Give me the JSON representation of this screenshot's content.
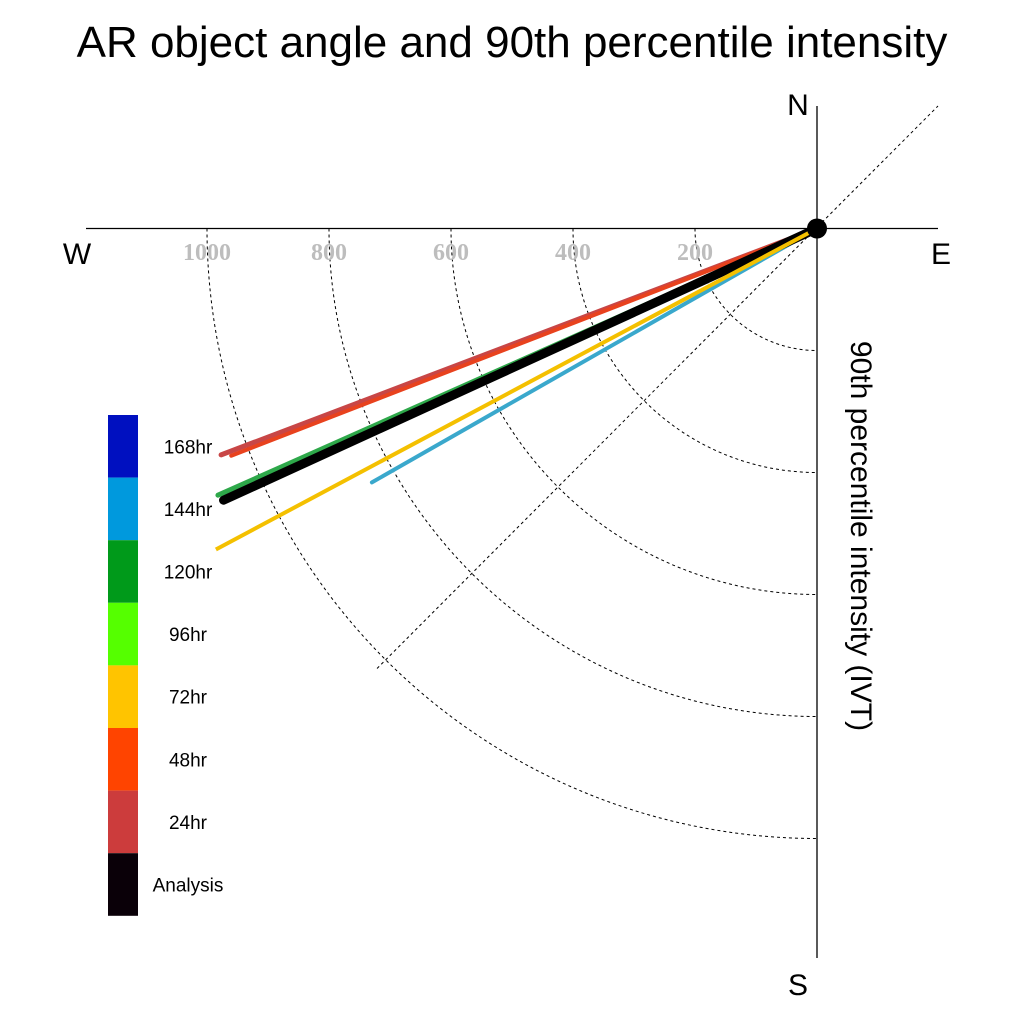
{
  "chart_data": {
    "type": "line",
    "title": "AR object angle and 90th percentile intensity",
    "ylabel": "90th percentile intensity (IVT)",
    "compass": {
      "north": "N",
      "south": "S",
      "east": "E",
      "west": "W"
    },
    "radial_ticks": [
      200,
      400,
      600,
      800,
      1000
    ],
    "radial_range": [
      0,
      1200
    ],
    "grid": true,
    "legend": {
      "placement": "left",
      "entries": [
        {
          "label": "168hr",
          "color": "#0010c0"
        },
        {
          "label": "144hr",
          "color": "#0099dd"
        },
        {
          "label": "120hr",
          "color": "#009a1a"
        },
        {
          "label": "96hr",
          "color": "#55ff00"
        },
        {
          "label": "72hr",
          "color": "#ffc400"
        },
        {
          "label": "48hr",
          "color": "#ff4400"
        },
        {
          "label": "24hr",
          "color": "#cc3c3c"
        },
        {
          "label": "Analysis",
          "color": "#0a0008"
        }
      ]
    },
    "series": [
      {
        "label": "144hr",
        "color": "#3aa8cc",
        "angle_deg": 240.3,
        "intensity": 840,
        "width": 4
      },
      {
        "label": "24hr",
        "color": "#c84646",
        "angle_deg": 249.2,
        "intensity": 1045,
        "width": 5
      },
      {
        "label": "48hr",
        "color": "#e8421e",
        "angle_deg": 248.8,
        "intensity": 1030,
        "width": 4
      },
      {
        "label": "120hr",
        "color": "#2ea84a",
        "angle_deg": 246.0,
        "intensity": 1075,
        "width": 5
      },
      {
        "label": "Analysis",
        "color": "#000000",
        "angle_deg": 245.4,
        "intensity": 1070,
        "width": 9
      },
      {
        "label": "72hr",
        "color": "#f4c000",
        "angle_deg": 241.9,
        "intensity": 1135,
        "width": 4,
        "end_marker": true
      }
    ],
    "origin_marker": true
  }
}
